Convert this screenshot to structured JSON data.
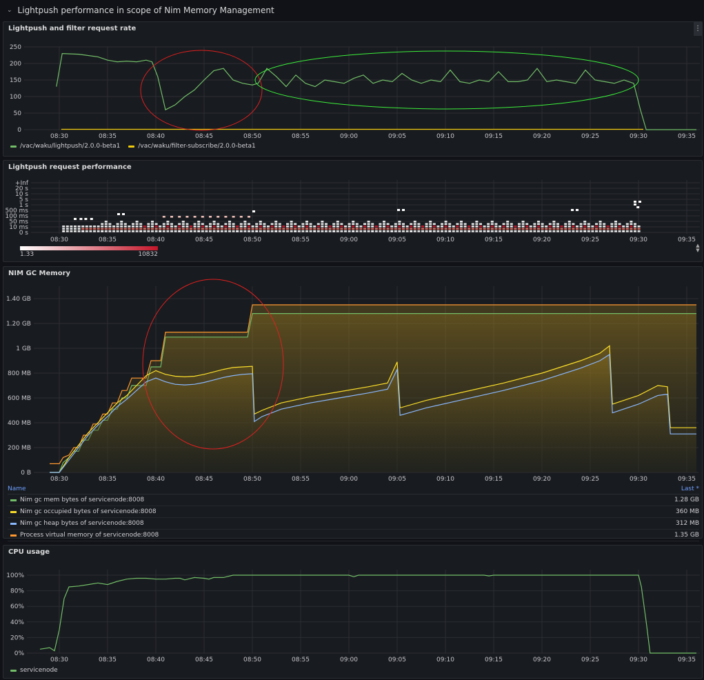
{
  "row_title": "Lightpush performance in scope of Nim Memory Management",
  "time_ticks": [
    "08:30",
    "08:35",
    "08:40",
    "08:45",
    "08:50",
    "08:55",
    "09:00",
    "09:05",
    "09:10",
    "09:15",
    "09:20",
    "09:25",
    "09:30",
    "09:35"
  ],
  "panel1": {
    "title": "Lightpush and filter request rate",
    "legend": [
      {
        "name": "/vac/waku/lightpush/2.0.0-beta1",
        "color": "#73bf69"
      },
      {
        "name": "/vac/waku/filter-subscribe/2.0.0-beta1",
        "color": "#f2cc0c"
      }
    ],
    "chart_data": {
      "type": "line",
      "x_unit": "minutes since 08:30",
      "y_ticks": [
        "0",
        "50",
        "100",
        "150",
        "200",
        "250"
      ],
      "ylim": [
        0,
        250
      ],
      "series": [
        {
          "name": "/vac/waku/lightpush/2.0.0-beta1",
          "color": "#73bf69",
          "points": [
            [
              -0.3,
              130
            ],
            [
              0.3,
              230
            ],
            [
              2,
              228
            ],
            [
              4,
              220
            ],
            [
              5,
              210
            ],
            [
              6,
              205
            ],
            [
              7,
              207
            ],
            [
              8,
              205
            ],
            [
              9,
              210
            ],
            [
              9.6,
              205
            ],
            [
              10.2,
              160
            ],
            [
              11,
              60
            ],
            [
              12,
              75
            ],
            [
              13,
              100
            ],
            [
              14,
              120
            ],
            [
              15,
              150
            ],
            [
              16,
              178
            ],
            [
              17,
              185
            ],
            [
              18,
              150
            ],
            [
              19,
              140
            ],
            [
              20,
              135
            ],
            [
              20.6,
              140
            ],
            [
              21.5,
              185
            ],
            [
              22.5,
              160
            ],
            [
              23.5,
              130
            ],
            [
              24.5,
              165
            ],
            [
              25.5,
              140
            ],
            [
              26.5,
              130
            ],
            [
              27.5,
              150
            ],
            [
              28.5,
              145
            ],
            [
              29.5,
              140
            ],
            [
              30.5,
              155
            ],
            [
              31.5,
              165
            ],
            [
              32.5,
              140
            ],
            [
              33.5,
              150
            ],
            [
              34.5,
              145
            ],
            [
              35.5,
              170
            ],
            [
              36.5,
              150
            ],
            [
              37.5,
              140
            ],
            [
              38.5,
              150
            ],
            [
              39.5,
              145
            ],
            [
              40.5,
              180
            ],
            [
              41.5,
              145
            ],
            [
              42.5,
              140
            ],
            [
              43.5,
              150
            ],
            [
              44.5,
              145
            ],
            [
              45.5,
              175
            ],
            [
              46.5,
              145
            ],
            [
              47.5,
              145
            ],
            [
              48.5,
              150
            ],
            [
              49.5,
              185
            ],
            [
              50.5,
              145
            ],
            [
              51.5,
              150
            ],
            [
              52.5,
              145
            ],
            [
              53.5,
              140
            ],
            [
              54.5,
              180
            ],
            [
              55.5,
              150
            ],
            [
              56.5,
              145
            ],
            [
              57.5,
              140
            ],
            [
              58.5,
              150
            ],
            [
              59.5,
              140
            ],
            [
              60.2,
              60
            ],
            [
              60.8,
              0
            ],
            [
              66,
              0
            ]
          ]
        },
        {
          "name": "/vac/waku/filter-subscribe/2.0.0-beta1",
          "color": "#f2cc0c",
          "points": [
            [
              0.2,
              1
            ],
            [
              60.5,
              1
            ]
          ]
        }
      ]
    }
  },
  "panel2": {
    "title": "Lightpush request performance",
    "y_ticks": [
      "0 s",
      "10 ms",
      "50 ms",
      "100 ms",
      "500 ms",
      "1 s",
      "5 s",
      "10 s",
      "20 s",
      "+Inf"
    ],
    "scale_min": "1.33",
    "scale_max": "10832",
    "chart_data": {
      "type": "heatmap",
      "x_unit": "minutes since 08:30",
      "start": 0.3,
      "end": 60.3,
      "buckets": [
        "0 s",
        "10 ms",
        "50 ms",
        "100 ms",
        "500 ms",
        "1 s",
        "5 s",
        "10 s",
        "20 s",
        "+Inf"
      ],
      "color_scale": [
        "#ffffff",
        "#c4162a"
      ],
      "color_range": [
        1.33,
        10832
      ]
    }
  },
  "panel3": {
    "title": "NIM GC Memory",
    "y_ticks": [
      "0 B",
      "200 MB",
      "400 MB",
      "600 MB",
      "800 MB",
      "1 GB",
      "1.20 GB",
      "1.40 GB"
    ],
    "table_header_name": "Name",
    "table_header_last": "Last *",
    "legend": [
      {
        "name": "Nim gc mem bytes of servicenode:8008",
        "color": "#73bf69",
        "last": "1.28 GB"
      },
      {
        "name": "Nim gc occupied bytes of servicenode:8008",
        "color": "#fade2a",
        "last": "360 MB"
      },
      {
        "name": "Nim gc heap bytes of servicenode:8008",
        "color": "#8ab8ff",
        "last": "312 MB"
      },
      {
        "name": "Process virtual memory of servicenode:8008",
        "color": "#ff9830",
        "last": "1.35 GB"
      }
    ],
    "chart_data": {
      "type": "area",
      "x_unit": "minutes since 08:30",
      "y_unit": "MB",
      "ylim": [
        0,
        1500
      ],
      "series": [
        {
          "name": "Process virtual memory of servicenode:8008",
          "color": "#ff9830",
          "points": [
            [
              -1,
              70
            ],
            [
              0,
              70
            ],
            [
              0.4,
              120
            ],
            [
              1,
              140
            ],
            [
              1.5,
              200
            ],
            [
              2,
              200
            ],
            [
              2.5,
              300
            ],
            [
              3,
              300
            ],
            [
              3.5,
              390
            ],
            [
              4,
              390
            ],
            [
              4.5,
              470
            ],
            [
              5,
              470
            ],
            [
              5.5,
              560
            ],
            [
              6,
              560
            ],
            [
              6.5,
              660
            ],
            [
              7,
              660
            ],
            [
              7.5,
              760
            ],
            [
              9,
              760
            ],
            [
              9.5,
              900
            ],
            [
              10.5,
              900
            ],
            [
              11,
              1130
            ],
            [
              19.5,
              1130
            ],
            [
              20,
              1350
            ],
            [
              66,
              1350
            ]
          ]
        },
        {
          "name": "Nim gc mem bytes of servicenode:8008",
          "color": "#73bf69",
          "points": [
            [
              -1,
              0
            ],
            [
              0,
              0
            ],
            [
              0.4,
              80
            ],
            [
              1,
              120
            ],
            [
              1.5,
              170
            ],
            [
              2,
              170
            ],
            [
              2.5,
              260
            ],
            [
              3,
              260
            ],
            [
              3.5,
              340
            ],
            [
              4,
              340
            ],
            [
              4.5,
              420
            ],
            [
              5,
              420
            ],
            [
              5.5,
              510
            ],
            [
              6,
              510
            ],
            [
              6.5,
              600
            ],
            [
              7,
              600
            ],
            [
              7.5,
              700
            ],
            [
              9,
              700
            ],
            [
              9.5,
              850
            ],
            [
              10.5,
              850
            ],
            [
              11,
              1090
            ],
            [
              19.5,
              1090
            ],
            [
              20,
              1280
            ],
            [
              66,
              1280
            ]
          ]
        },
        {
          "name": "Nim gc occupied bytes of servicenode:8008",
          "color": "#fade2a",
          "points": [
            [
              -1,
              0
            ],
            [
              0,
              0
            ],
            [
              1,
              120
            ],
            [
              2,
              220
            ],
            [
              3,
              320
            ],
            [
              4,
              400
            ],
            [
              5,
              480
            ],
            [
              6,
              560
            ],
            [
              7,
              620
            ],
            [
              8,
              700
            ],
            [
              9,
              780
            ],
            [
              10,
              820
            ],
            [
              11,
              790
            ],
            [
              12,
              775
            ],
            [
              13,
              770
            ],
            [
              14,
              775
            ],
            [
              15,
              790
            ],
            [
              16,
              810
            ],
            [
              17,
              830
            ],
            [
              18,
              845
            ],
            [
              19,
              850
            ],
            [
              20,
              855
            ],
            [
              20.2,
              470
            ],
            [
              21,
              500
            ],
            [
              23,
              560
            ],
            [
              26,
              610
            ],
            [
              29,
              650
            ],
            [
              32,
              690
            ],
            [
              34,
              720
            ],
            [
              35,
              890
            ],
            [
              35.3,
              520
            ],
            [
              38,
              580
            ],
            [
              42,
              650
            ],
            [
              46,
              720
            ],
            [
              50,
              800
            ],
            [
              54,
              900
            ],
            [
              56,
              960
            ],
            [
              57,
              1020
            ],
            [
              57.3,
              550
            ],
            [
              60,
              620
            ],
            [
              62,
              700
            ],
            [
              63,
              690
            ],
            [
              63.3,
              360
            ],
            [
              66,
              360
            ]
          ]
        },
        {
          "name": "Nim gc heap bytes of servicenode:8008",
          "color": "#8ab8ff",
          "points": [
            [
              -1,
              0
            ],
            [
              0,
              0
            ],
            [
              1,
              100
            ],
            [
              2,
              200
            ],
            [
              3,
              300
            ],
            [
              4,
              380
            ],
            [
              5,
              450
            ],
            [
              6,
              530
            ],
            [
              7,
              590
            ],
            [
              8,
              660
            ],
            [
              9,
              730
            ],
            [
              10,
              760
            ],
            [
              11,
              730
            ],
            [
              12,
              710
            ],
            [
              13,
              705
            ],
            [
              14,
              710
            ],
            [
              15,
              725
            ],
            [
              16,
              745
            ],
            [
              17,
              765
            ],
            [
              18,
              780
            ],
            [
              19,
              790
            ],
            [
              20,
              795
            ],
            [
              20.2,
              410
            ],
            [
              21,
              450
            ],
            [
              23,
              510
            ],
            [
              26,
              560
            ],
            [
              29,
              600
            ],
            [
              32,
              640
            ],
            [
              34,
              670
            ],
            [
              35,
              830
            ],
            [
              35.3,
              460
            ],
            [
              38,
              520
            ],
            [
              42,
              590
            ],
            [
              46,
              660
            ],
            [
              50,
              740
            ],
            [
              54,
              840
            ],
            [
              56,
              900
            ],
            [
              57,
              950
            ],
            [
              57.3,
              480
            ],
            [
              60,
              550
            ],
            [
              62,
              620
            ],
            [
              63,
              630
            ],
            [
              63.3,
              310
            ],
            [
              66,
              310
            ]
          ]
        }
      ]
    }
  },
  "panel4": {
    "title": "CPU usage",
    "y_ticks": [
      "0%",
      "20%",
      "40%",
      "60%",
      "80%",
      "100%"
    ],
    "legend": [
      {
        "name": "servicenode",
        "color": "#73bf69"
      }
    ],
    "chart_data": {
      "type": "line",
      "x_unit": "minutes since 08:30",
      "y_unit": "percent",
      "ylim": [
        0,
        100
      ],
      "series": [
        {
          "name": "servicenode",
          "color": "#73bf69",
          "points": [
            [
              -2,
              5
            ],
            [
              -1,
              7
            ],
            [
              -0.5,
              3
            ],
            [
              0,
              30
            ],
            [
              0.5,
              70
            ],
            [
              1,
              85
            ],
            [
              2,
              86
            ],
            [
              3,
              88
            ],
            [
              4,
              90
            ],
            [
              5,
              88
            ],
            [
              6,
              92
            ],
            [
              7,
              95
            ],
            [
              8,
              96
            ],
            [
              9,
              96
            ],
            [
              10,
              95
            ],
            [
              11,
              95
            ],
            [
              12,
              96
            ],
            [
              12.5,
              96
            ],
            [
              13,
              94
            ],
            [
              14,
              97
            ],
            [
              15,
              96
            ],
            [
              15.5,
              95
            ],
            [
              16,
              97
            ],
            [
              17,
              97
            ],
            [
              18,
              100
            ],
            [
              30,
              100
            ],
            [
              30.5,
              98
            ],
            [
              31,
              100
            ],
            [
              44,
              100
            ],
            [
              44.5,
              99
            ],
            [
              45,
              100
            ],
            [
              60,
              100
            ],
            [
              60.3,
              85
            ],
            [
              60.8,
              40
            ],
            [
              61.2,
              0
            ],
            [
              66,
              0
            ]
          ]
        }
      ]
    }
  }
}
